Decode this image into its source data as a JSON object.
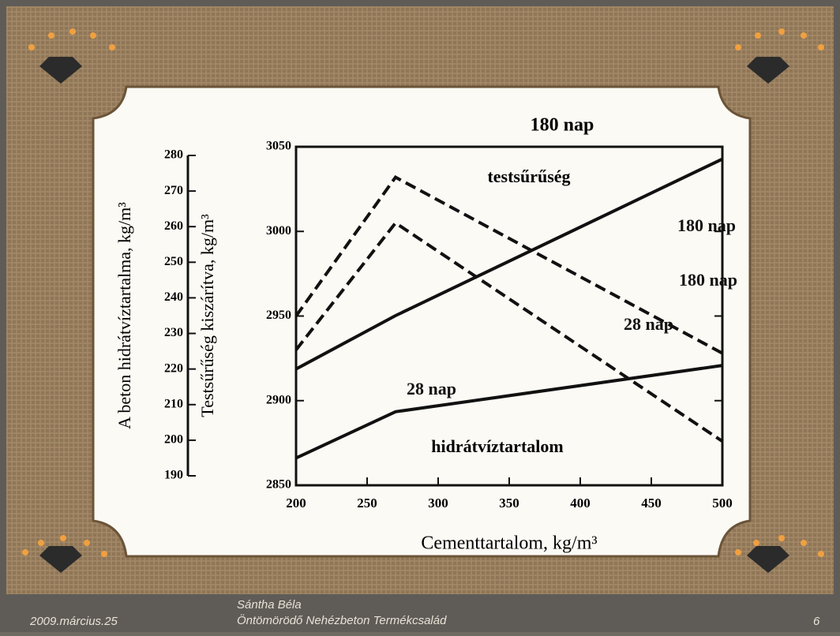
{
  "chart_data": {
    "type": "line",
    "title": "180 nap",
    "x_label": "Cementtartalom, kg/m³",
    "y_label": "Testsűrűség kiszárítva, kg/m³",
    "y2_label": "A beton hidrátvíztartalma, kg/m³",
    "annotations": [
      "testsűrűség",
      "hidrátvíztartalom"
    ],
    "x": [
      200,
      270,
      500
    ],
    "xlim": [
      200,
      500
    ],
    "xticks": [
      200,
      250,
      300,
      350,
      400,
      450,
      500
    ],
    "ylim": [
      2850,
      3050
    ],
    "yticks": [
      2850,
      2900,
      2950,
      3000,
      3050
    ],
    "y2lim": [
      190,
      280
    ],
    "y2ticks": [
      190,
      200,
      210,
      220,
      230,
      240,
      250,
      260,
      270,
      280
    ],
    "series": [
      {
        "name": "180 nap",
        "color": "#111111",
        "style": "dashed",
        "values": [
          2950,
          3032,
          2928
        ]
      },
      {
        "name": "28 nap",
        "color": "#111111",
        "style": "dashed",
        "values": [
          2930,
          3005,
          2876
        ]
      },
      {
        "name": "180 nap",
        "color": "#111111",
        "style": "solid",
        "axis": "y2",
        "values": [
          220,
          235,
          279
        ]
      },
      {
        "name": "28 nap",
        "color": "#111111",
        "style": "solid",
        "axis": "y2",
        "values": [
          195,
          208,
          221
        ]
      }
    ]
  },
  "footer": {
    "date": "2009.március.25",
    "author": "Sántha Béla",
    "project": "Öntömörödő Nehézbeton Termékcsalád",
    "page": "6"
  }
}
